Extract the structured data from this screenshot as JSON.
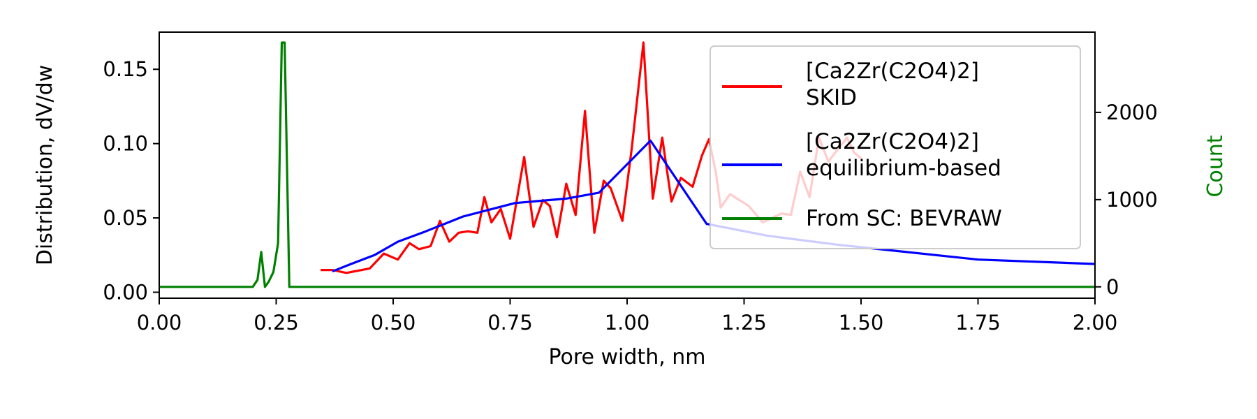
{
  "chart_data": {
    "type": "line",
    "title": "",
    "xlabel": "Pore width, nm",
    "ylabel": "Distribution, dV/dw",
    "y2label": "Count",
    "xlim": [
      0,
      2.0
    ],
    "ylim": [
      -0.004,
      0.175
    ],
    "y2lim": [
      -130,
      2920
    ],
    "xticks": [
      "0.00",
      "0.25",
      "0.50",
      "0.75",
      "1.00",
      "1.25",
      "1.50",
      "1.75",
      "2.00"
    ],
    "yticks": [
      "0.00",
      "0.05",
      "0.10",
      "0.15"
    ],
    "y2ticks": [
      "0",
      "1000",
      "2000"
    ],
    "grid": false,
    "legend_position": "upper-right",
    "series": [
      {
        "name": "[Ca2Zr(C2O4)2]\nSKID",
        "color": "#ff0000",
        "axis": "left",
        "x": [
          0.345,
          0.37,
          0.4,
          0.45,
          0.48,
          0.51,
          0.535,
          0.555,
          0.58,
          0.6,
          0.62,
          0.64,
          0.66,
          0.68,
          0.695,
          0.71,
          0.73,
          0.75,
          0.78,
          0.8,
          0.82,
          0.835,
          0.85,
          0.87,
          0.89,
          0.91,
          0.93,
          0.95,
          0.965,
          0.99,
          1.01,
          1.035,
          1.055,
          1.075,
          1.095,
          1.115,
          1.14,
          1.16,
          1.175,
          1.19,
          1.2,
          1.22,
          1.24,
          1.26,
          1.29,
          1.31,
          1.33,
          1.35,
          1.37,
          1.39,
          1.41,
          1.43,
          1.45,
          1.47,
          1.485,
          1.5
        ],
        "y": [
          0.015,
          0.015,
          0.013,
          0.016,
          0.026,
          0.022,
          0.033,
          0.029,
          0.031,
          0.048,
          0.034,
          0.04,
          0.041,
          0.04,
          0.064,
          0.047,
          0.056,
          0.036,
          0.091,
          0.044,
          0.062,
          0.058,
          0.037,
          0.073,
          0.052,
          0.122,
          0.04,
          0.075,
          0.07,
          0.048,
          0.097,
          0.168,
          0.063,
          0.104,
          0.061,
          0.077,
          0.071,
          0.092,
          0.103,
          0.08,
          0.057,
          0.066,
          0.062,
          0.058,
          0.047,
          0.05,
          0.053,
          0.052,
          0.081,
          0.064,
          0.104,
          0.088,
          0.096,
          0.104,
          0.094,
          0.09
        ]
      },
      {
        "name": "[Ca2Zr(C2O4)2]\nequilibrium-based",
        "color": "#0000ff",
        "axis": "left",
        "x": [
          0.37,
          0.41,
          0.46,
          0.51,
          0.57,
          0.65,
          0.76,
          0.87,
          0.94,
          1.05,
          1.17,
          1.3,
          1.45,
          1.75,
          2.0
        ],
        "y": [
          0.014,
          0.019,
          0.025,
          0.034,
          0.041,
          0.051,
          0.06,
          0.063,
          0.067,
          0.102,
          0.046,
          0.038,
          0.032,
          0.022,
          0.019
        ]
      },
      {
        "name": "From SC: BEVRAW",
        "color": "#008000",
        "axis": "right",
        "x": [
          0.0,
          0.2,
          0.21,
          0.218,
          0.226,
          0.234,
          0.244,
          0.254,
          0.262,
          0.268,
          0.278,
          0.3,
          2.0
        ],
        "y": [
          0,
          0,
          80,
          400,
          0,
          60,
          170,
          500,
          2800,
          2800,
          0,
          0,
          0
        ]
      }
    ]
  }
}
